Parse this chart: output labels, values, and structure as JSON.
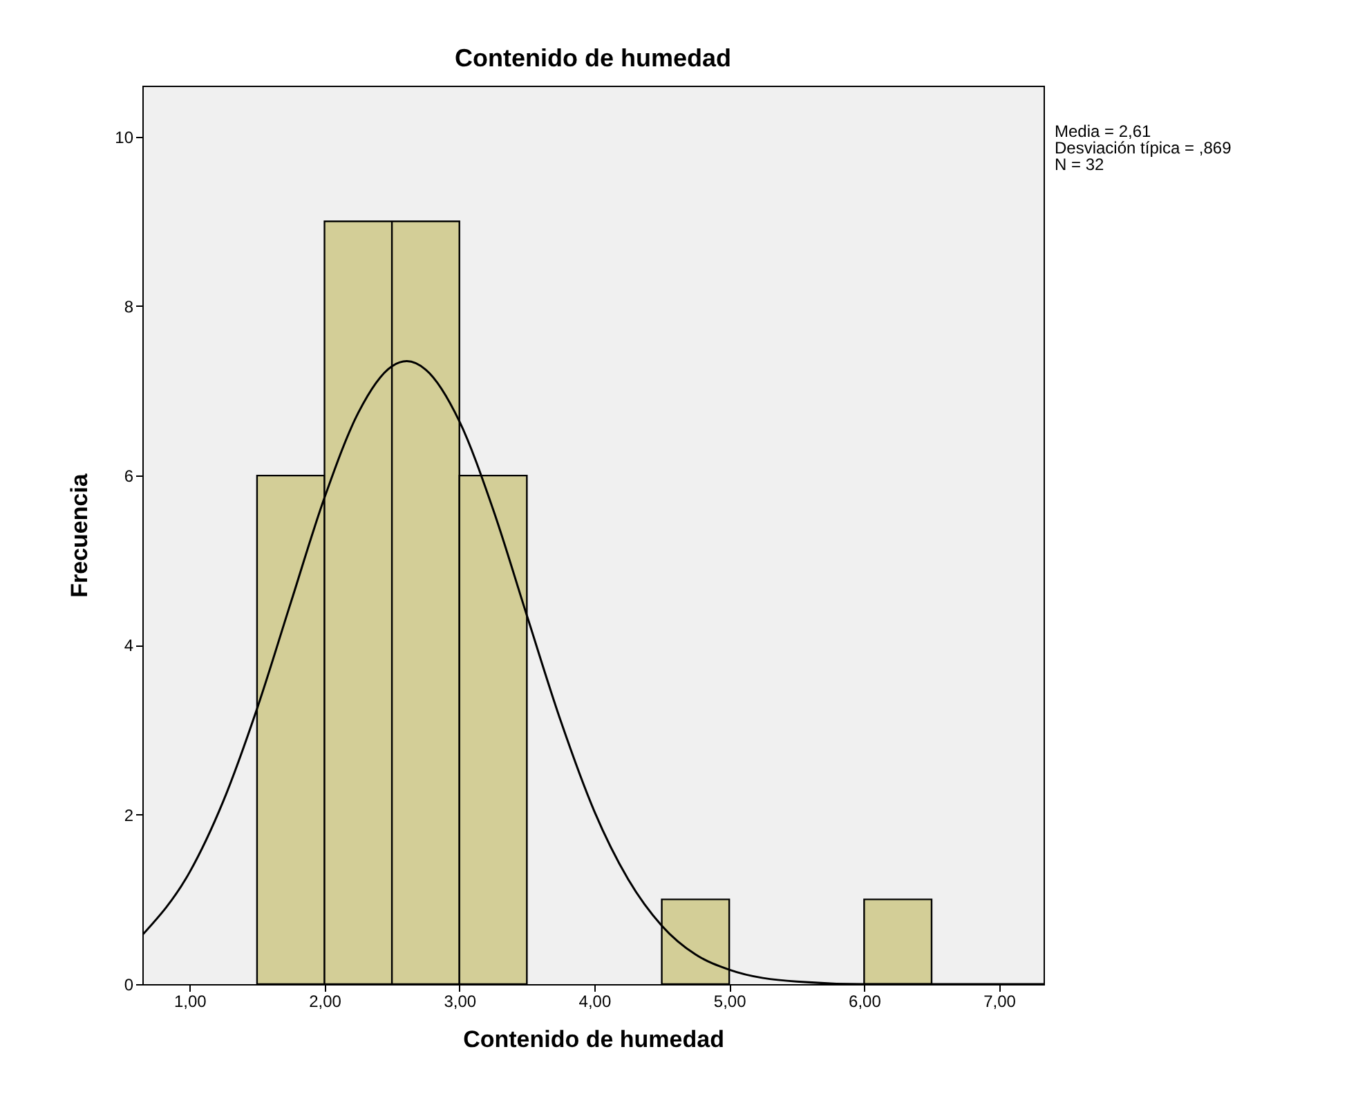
{
  "chart_data": {
    "type": "histogram",
    "title": "Contenido de humedad",
    "xlabel": "Contenido de humedad",
    "ylabel": "Frecuencia",
    "bins": [
      1.5,
      2.0,
      2.5,
      3.0,
      3.5,
      4.0,
      4.5,
      5.0,
      5.5,
      6.0,
      6.5
    ],
    "values": [
      6,
      9,
      9,
      6,
      0,
      0,
      1,
      0,
      0,
      1
    ],
    "color": "#d3ce97",
    "series": [
      {
        "type": "line",
        "color": "#000000",
        "x": [
          0.65,
          1.0,
          1.25,
          1.5,
          1.75,
          2.0,
          2.25,
          2.5,
          2.61,
          2.75,
          3.0,
          3.25,
          3.5,
          3.75,
          4.0,
          4.25,
          4.5,
          4.75,
          5.0,
          5.5,
          6.0,
          6.5,
          7.0,
          7.33
        ],
        "values": [
          0.58,
          1.32,
          2.16,
          3.25,
          4.5,
          5.74,
          6.74,
          7.29,
          7.35,
          7.25,
          6.64,
          5.6,
          4.35,
          3.11,
          2.04,
          1.24,
          0.69,
          0.35,
          0.17,
          0.03,
          0.0,
          0.0,
          0.0,
          0.0
        ]
      }
    ],
    "xlim": [
      0.65,
      7.33
    ],
    "ylim": [
      0,
      10.6
    ],
    "xticks": [
      {
        "value": 1,
        "label": "1,00"
      },
      {
        "value": 2,
        "label": "2,00"
      },
      {
        "value": 3,
        "label": "3,00"
      },
      {
        "value": 4,
        "label": "4,00"
      },
      {
        "value": 5,
        "label": "5,00"
      },
      {
        "value": 6,
        "label": "6,00"
      },
      {
        "value": 7,
        "label": "7,00"
      }
    ],
    "yticks": [
      0,
      2,
      4,
      6,
      8,
      10
    ],
    "annotations": [
      "Media = 2,61",
      "Desviación típica = ,869",
      "N = 32"
    ]
  }
}
